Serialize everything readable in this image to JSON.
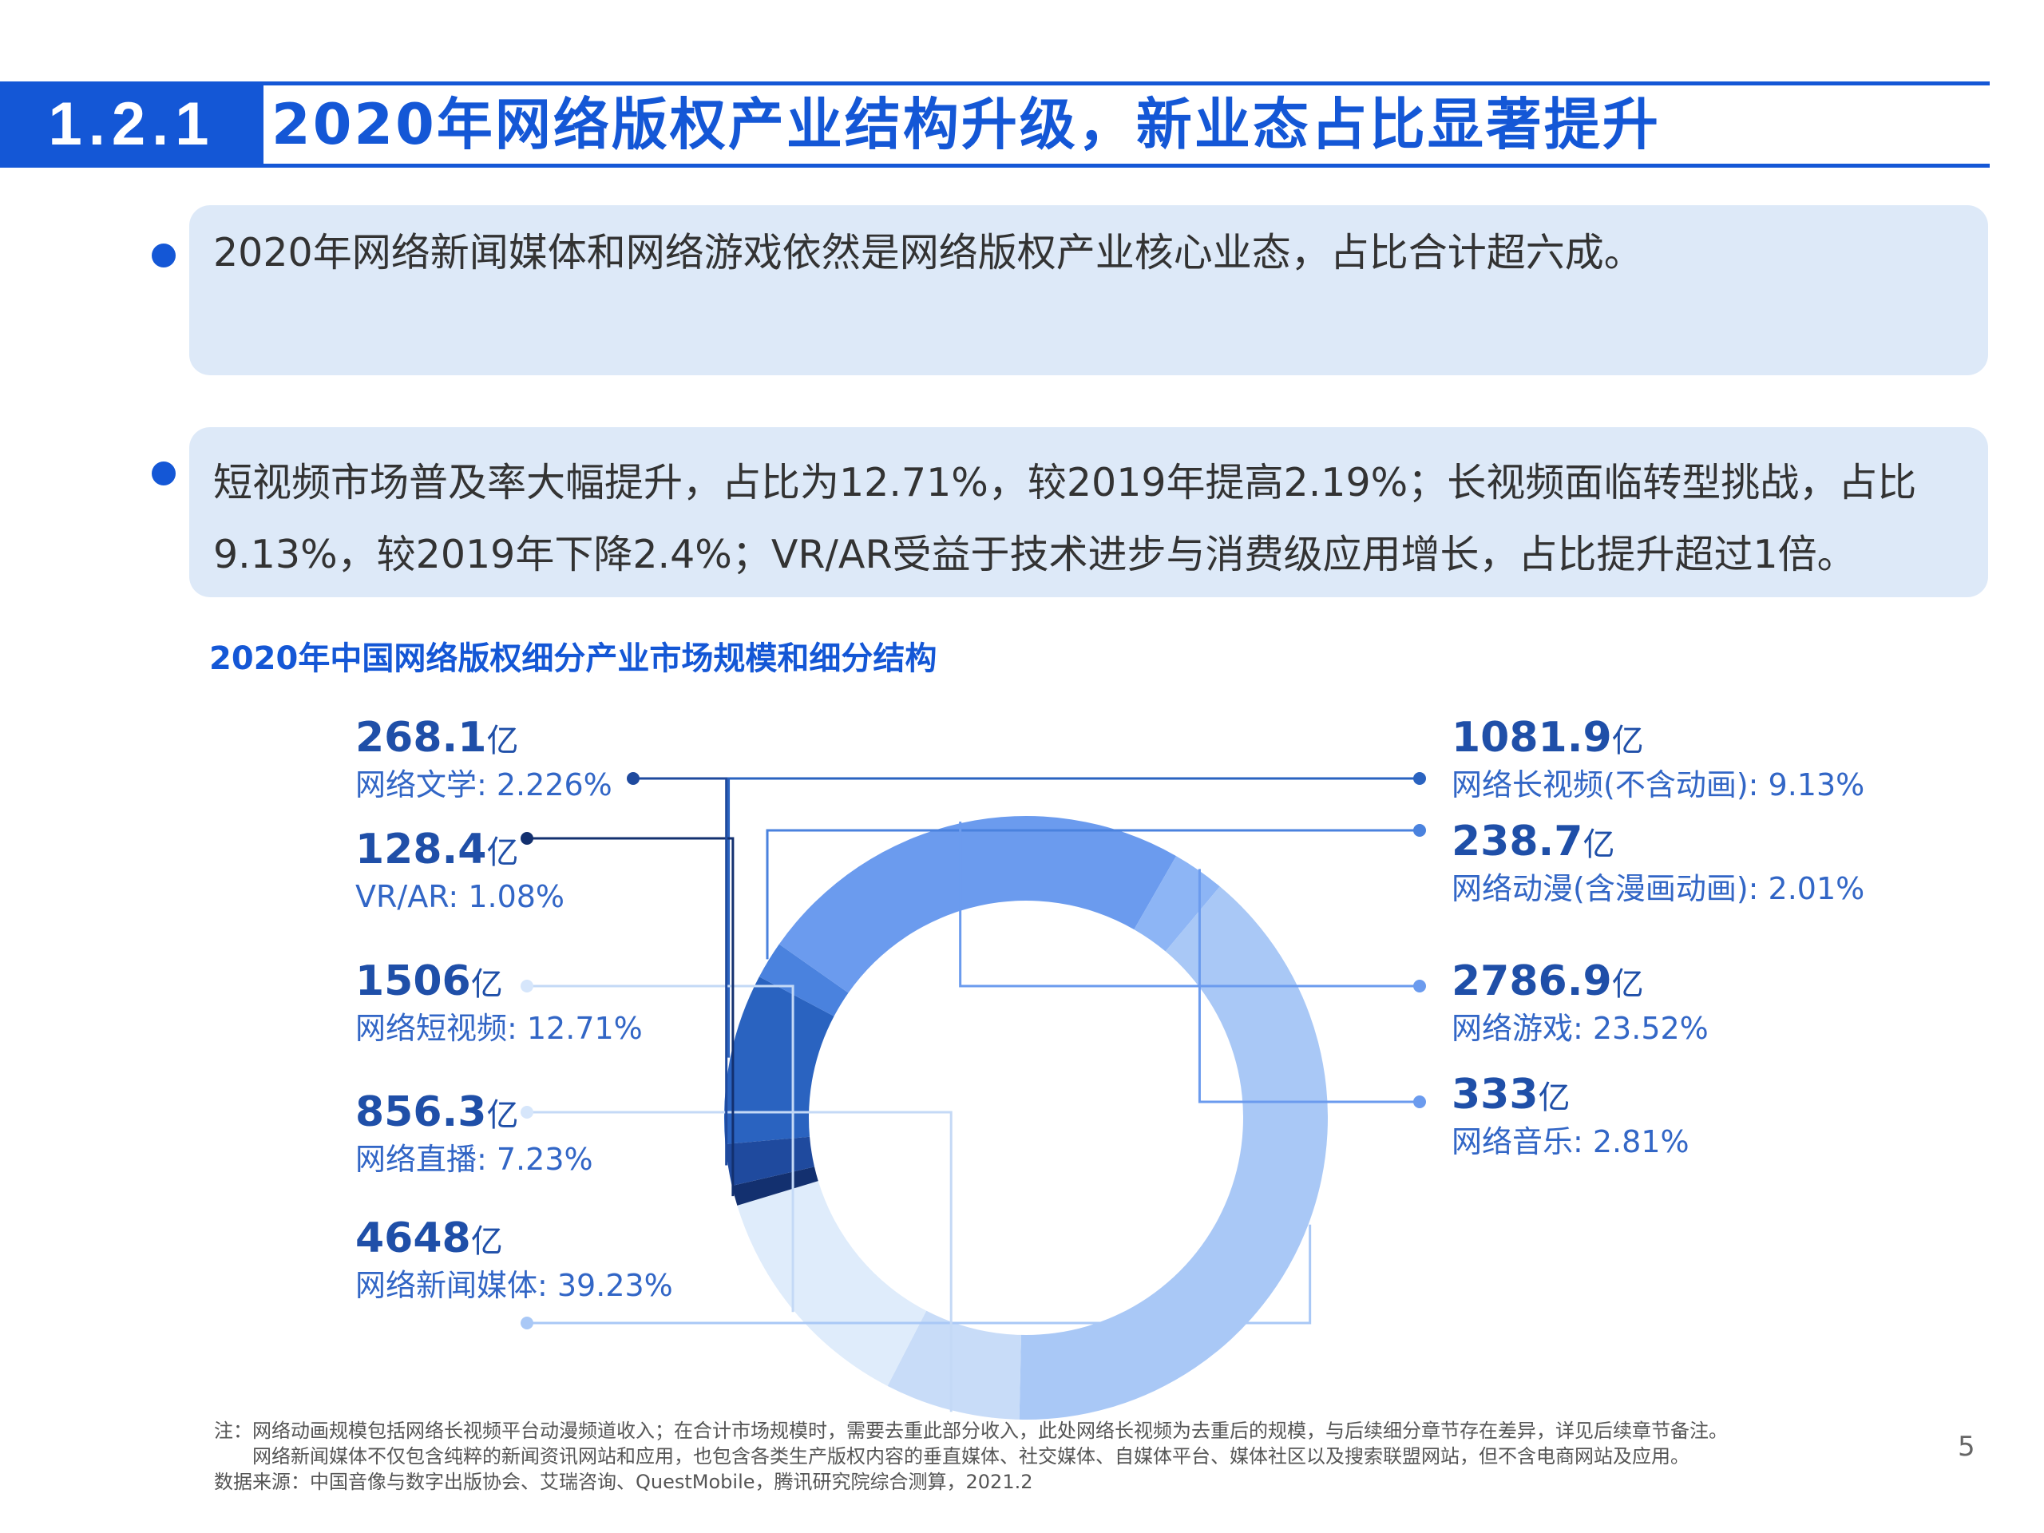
{
  "header": {
    "section_number": "1.2.1",
    "title": "2020年网络版权产业结构升级，新业态占比显著提升"
  },
  "bullets": [
    {
      "lines": [
        "2020年网络新闻媒体和网络游戏依然是网络版权产业核心业态，占比合计超六成。"
      ]
    },
    {
      "lines": [
        "短视频市场普及率大幅提升，占比为12.71%，较2019年提高2.19%；长视频面临转型挑战，占比",
        "9.13%，较2019年下降2.4%；VR/AR受益于技术进步与消费级应用增长，占比提升超过1倍。"
      ]
    }
  ],
  "chart_data": {
    "type": "pie",
    "variant": "donut",
    "title": "2020年中国网络版权细分产业市场规模和细分结构",
    "unit": "亿",
    "slices": [
      {
        "value": "1081.9",
        "name": "网络长视频(不含动画)",
        "share": 9.13,
        "share_label": "9.13%",
        "color": "#2a63c0"
      },
      {
        "value": "238.7",
        "name": "网络动漫(含漫画动画)",
        "share": 2.01,
        "share_label": "2.01%",
        "color": "#4a82de"
      },
      {
        "value": "2786.9",
        "name": "网络游戏",
        "share": 23.52,
        "share_label": "23.52%",
        "color": "#6b9bee"
      },
      {
        "value": "333",
        "name": "网络音乐",
        "share": 2.81,
        "share_label": "2.81%",
        "color": "#8db5f5"
      },
      {
        "value": "4648",
        "name": "网络新闻媒体",
        "share": 39.23,
        "share_label": "39.23%",
        "color": "#a9c8f6"
      },
      {
        "value": "856.3",
        "name": "网络直播",
        "share": 7.23,
        "share_label": "7.23%",
        "color": "#c8dcf8"
      },
      {
        "value": "1506",
        "name": "网络短视频",
        "share": 12.71,
        "share_label": "12.71%",
        "color": "#dfecfb"
      },
      {
        "value": "128.4",
        "name": "VR/AR",
        "share": 1.08,
        "share_label": "1.08%",
        "color": "#13306f"
      },
      {
        "value": "268.1",
        "name": "网络文学",
        "share": 2.226,
        "share_label": "2.226%",
        "color": "#1f4a9e"
      }
    ]
  },
  "notes": [
    "注：网络动画规模包括网络长视频平台动漫频道收入；在合计市场规模时，需要去重此部分收入，此处网络长视频为去重后的规模，与后续细分章节存在差异，详见后续章节备注。",
    "　　网络新闻媒体不仅包含纯粹的新闻资讯网站和应用，也包含各类生产版权内容的垂直媒体、社交媒体、自媒体平台、媒体社区以及搜索联盟网站，但不含电商网站及应用。",
    "数据来源：中国音像与数字出版协会、艾瑞咨询、QuestMobile，腾讯研究院综合测算，2021.2"
  ],
  "page_number": "5"
}
